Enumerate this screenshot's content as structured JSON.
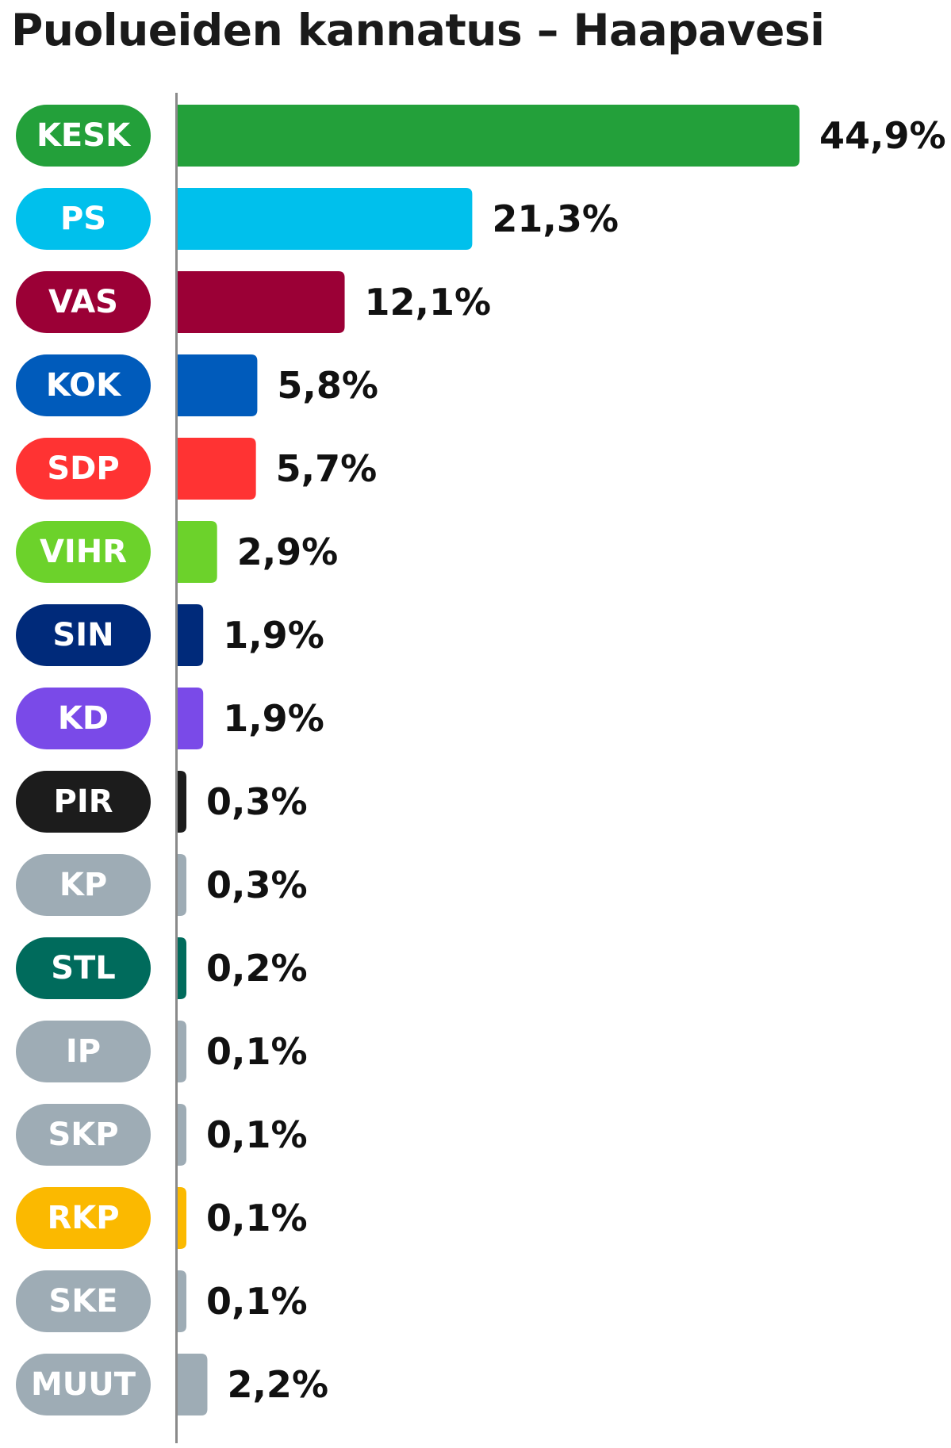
{
  "chart_data": {
    "type": "bar",
    "orientation": "horizontal",
    "title": "Puolueiden kannatus – Haapavesi",
    "xlabel": "",
    "ylabel": "",
    "grid": false,
    "xlim": [
      0,
      44.9
    ],
    "categories": [
      "KESK",
      "PS",
      "VAS",
      "KOK",
      "SDP",
      "VIHR",
      "SIN",
      "KD",
      "PIR",
      "KP",
      "STL",
      "IP",
      "SKP",
      "RKP",
      "SKE",
      "MUUT"
    ],
    "values": [
      44.9,
      21.3,
      12.1,
      5.8,
      5.7,
      2.9,
      1.9,
      1.9,
      0.3,
      0.3,
      0.2,
      0.1,
      0.1,
      0.1,
      0.1,
      2.2
    ],
    "value_labels": [
      "44,9%",
      "21,3%",
      "12,1%",
      "5,8%",
      "5,7%",
      "2,9%",
      "1,9%",
      "1,9%",
      "0,3%",
      "0,3%",
      "0,2%",
      "0,1%",
      "0,1%",
      "0,1%",
      "0,1%",
      "2,2%"
    ],
    "colors": [
      "#23a03a",
      "#00c0ec",
      "#9b0036",
      "#005bbb",
      "#ff3333",
      "#6cd22b",
      "#002a7a",
      "#7a4ae8",
      "#1c1c1c",
      "#9eacb5",
      "#006b5c",
      "#9eacb5",
      "#9eacb5",
      "#fbb900",
      "#9eacb5",
      "#9eacb5"
    ]
  }
}
